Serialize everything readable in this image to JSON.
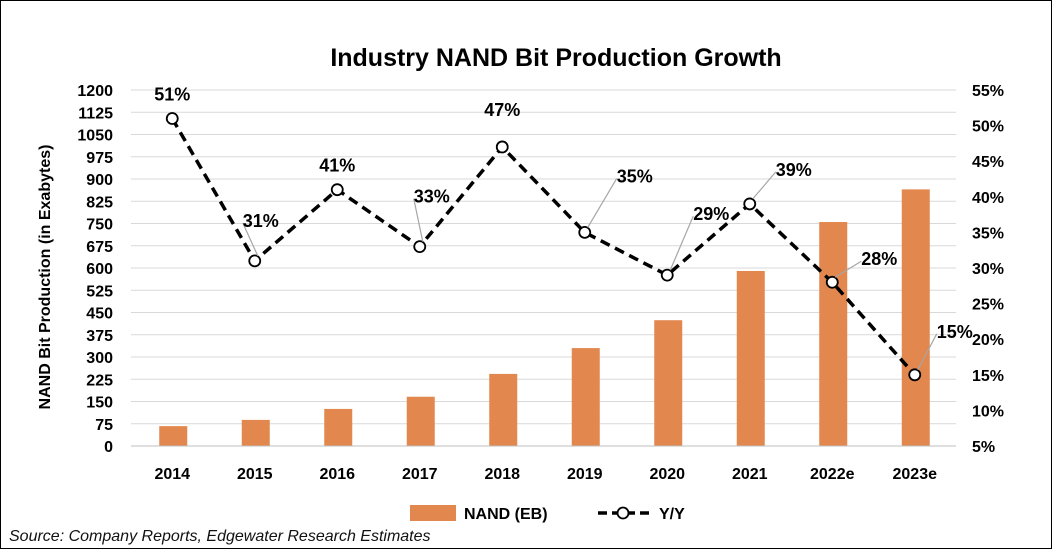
{
  "chart_data": {
    "type": "bar+line",
    "title": "Industry NAND Bit Production Growth",
    "categories": [
      "2014",
      "2015",
      "2016",
      "2017",
      "2018",
      "2019",
      "2020",
      "2021",
      "2022e",
      "2023e"
    ],
    "ylabel": "NAND Bit Production (in Exabytes)",
    "y_ticks": [
      "0",
      "75",
      "150",
      "225",
      "300",
      "375",
      "450",
      "525",
      "600",
      "675",
      "750",
      "825",
      "900",
      "975",
      "1050",
      "1125",
      "1200"
    ],
    "ylim": [
      0,
      1200
    ],
    "y2_ticks": [
      "5%",
      "10%",
      "15%",
      "20%",
      "25%",
      "30%",
      "35%",
      "40%",
      "45%",
      "50%",
      "55%"
    ],
    "y2lim": [
      5,
      55
    ],
    "series": [
      {
        "name": "NAND (EB)",
        "type": "bar",
        "axis": "left",
        "color": "#E2874E",
        "values": [
          67,
          88,
          125,
          166,
          243,
          330,
          424,
          590,
          755,
          865
        ]
      },
      {
        "name": "Y/Y",
        "type": "line",
        "axis": "right",
        "color": "#000000",
        "line_style": "dashed",
        "marker": "open-circle",
        "values": [
          51,
          31,
          41,
          33,
          47,
          35,
          29,
          39,
          28,
          15
        ],
        "labels": [
          "51%",
          "31%",
          "41%",
          "33%",
          "47%",
          "35%",
          "29%",
          "39%",
          "28%",
          "15%"
        ]
      }
    ],
    "grid": "horizontal",
    "legend_position": "bottom"
  },
  "source": "Source: Company Reports, Edgewater Research Estimates"
}
